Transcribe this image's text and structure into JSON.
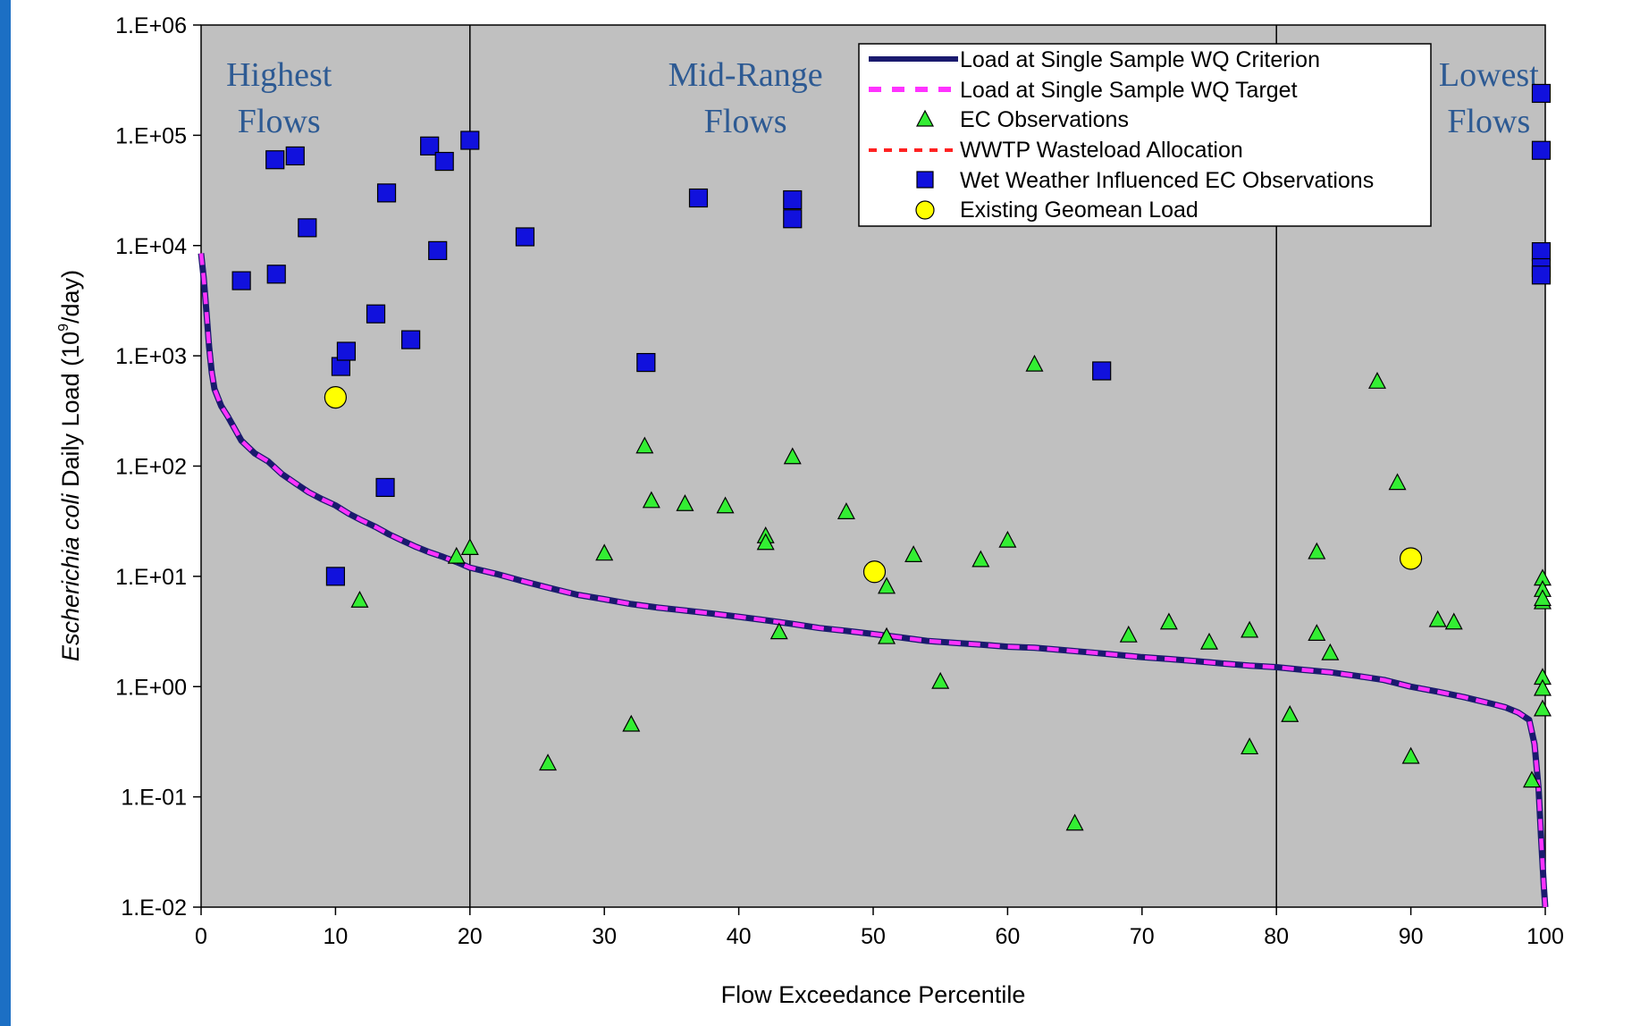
{
  "chart_data": {
    "type": "scatter",
    "xlabel": "Flow Exceedance Percentile",
    "ylabel": {
      "italic": "Escherichia coli",
      "rest": " Daily Load (10",
      "sup": "9",
      "unit_tail": "/day)"
    },
    "xlim": [
      0,
      100
    ],
    "ylim": [
      0.01,
      1000000
    ],
    "y_scale": "log",
    "x_ticks": [
      "0",
      "10",
      "20",
      "30",
      "40",
      "50",
      "60",
      "70",
      "80",
      "90",
      "100"
    ],
    "y_ticks": [
      "1.E-02",
      "1.E-01",
      "1.E+00",
      "1.E+01",
      "1.E+02",
      "1.E+03",
      "1.E+04",
      "1.E+05",
      "1.E+06"
    ],
    "plot_background": "#c0c0c0",
    "vertical_lines": [
      20,
      80
    ],
    "zone_labels": [
      {
        "lines": [
          "Highest",
          "Flows"
        ],
        "x": 5.8
      },
      {
        "lines": [
          "Mid-Range",
          "Flows"
        ],
        "x": 40.5
      },
      {
        "lines": [
          "Lowest",
          "Flows"
        ],
        "x": 95.8
      }
    ],
    "legend": {
      "position": "top-right",
      "entries": [
        "Load at Single Sample WQ Criterion",
        "Load at Single Sample WQ Target",
        "EC Observations",
        "WWTP Wasteload Allocation",
        "Wet Weather Influenced EC Observations",
        "Existing Geomean Load"
      ]
    },
    "series": [
      {
        "name": "Load at Single Sample WQ Criterion",
        "kind": "line",
        "color": "#1a1a6e",
        "points": [
          [
            0,
            8500
          ],
          [
            0.2,
            5000
          ],
          [
            0.4,
            2500
          ],
          [
            0.6,
            1200
          ],
          [
            0.8,
            700
          ],
          [
            1,
            500
          ],
          [
            1.5,
            350
          ],
          [
            2,
            280
          ],
          [
            3,
            170
          ],
          [
            4,
            130
          ],
          [
            5,
            110
          ],
          [
            6,
            85
          ],
          [
            7,
            70
          ],
          [
            8,
            58
          ],
          [
            9,
            50
          ],
          [
            10,
            44
          ],
          [
            11,
            37
          ],
          [
            12,
            32
          ],
          [
            13,
            28
          ],
          [
            14,
            24
          ],
          [
            15,
            21
          ],
          [
            16,
            18.5
          ],
          [
            17,
            16.5
          ],
          [
            18,
            15
          ],
          [
            19,
            13.5
          ],
          [
            20,
            12
          ],
          [
            22,
            10.5
          ],
          [
            24,
            9
          ],
          [
            26,
            7.8
          ],
          [
            28,
            6.8
          ],
          [
            30,
            6.2
          ],
          [
            32,
            5.6
          ],
          [
            34,
            5.2
          ],
          [
            36,
            4.9
          ],
          [
            38,
            4.6
          ],
          [
            40,
            4.3
          ],
          [
            42,
            4.0
          ],
          [
            44,
            3.7
          ],
          [
            46,
            3.4
          ],
          [
            48,
            3.2
          ],
          [
            50,
            3.0
          ],
          [
            52,
            2.8
          ],
          [
            54,
            2.6
          ],
          [
            56,
            2.5
          ],
          [
            58,
            2.4
          ],
          [
            60,
            2.3
          ],
          [
            62,
            2.25
          ],
          [
            64,
            2.15
          ],
          [
            66,
            2.05
          ],
          [
            68,
            1.95
          ],
          [
            70,
            1.85
          ],
          [
            72,
            1.78
          ],
          [
            74,
            1.7
          ],
          [
            76,
            1.62
          ],
          [
            78,
            1.55
          ],
          [
            80,
            1.5
          ],
          [
            82,
            1.42
          ],
          [
            84,
            1.35
          ],
          [
            86,
            1.25
          ],
          [
            88,
            1.15
          ],
          [
            90,
            1.0
          ],
          [
            92,
            0.9
          ],
          [
            94,
            0.8
          ],
          [
            96,
            0.7
          ],
          [
            97,
            0.65
          ],
          [
            98,
            0.58
          ],
          [
            98.8,
            0.5
          ],
          [
            99.2,
            0.3
          ],
          [
            99.5,
            0.12
          ],
          [
            99.7,
            0.04
          ],
          [
            99.9,
            0.015
          ],
          [
            100,
            0.01
          ]
        ]
      },
      {
        "name": "Load at Single Sample WQ Target",
        "kind": "dashed-line",
        "color": "#ff33ff",
        "points": [
          [
            0,
            8500
          ],
          [
            0.2,
            5000
          ],
          [
            0.4,
            2500
          ],
          [
            0.6,
            1200
          ],
          [
            0.8,
            700
          ],
          [
            1,
            500
          ],
          [
            1.5,
            350
          ],
          [
            2,
            280
          ],
          [
            3,
            170
          ],
          [
            4,
            130
          ],
          [
            5,
            110
          ],
          [
            6,
            85
          ],
          [
            7,
            70
          ],
          [
            8,
            58
          ],
          [
            9,
            50
          ],
          [
            10,
            44
          ],
          [
            11,
            37
          ],
          [
            12,
            32
          ],
          [
            13,
            28
          ],
          [
            14,
            24
          ],
          [
            15,
            21
          ],
          [
            16,
            18.5
          ],
          [
            17,
            16.5
          ],
          [
            18,
            15
          ],
          [
            19,
            13.5
          ],
          [
            20,
            12
          ],
          [
            22,
            10.5
          ],
          [
            24,
            9
          ],
          [
            26,
            7.8
          ],
          [
            28,
            6.8
          ],
          [
            30,
            6.2
          ],
          [
            32,
            5.6
          ],
          [
            34,
            5.2
          ],
          [
            36,
            4.9
          ],
          [
            38,
            4.6
          ],
          [
            40,
            4.3
          ],
          [
            42,
            4.0
          ],
          [
            44,
            3.7
          ],
          [
            46,
            3.4
          ],
          [
            48,
            3.2
          ],
          [
            50,
            3.0
          ],
          [
            52,
            2.8
          ],
          [
            54,
            2.6
          ],
          [
            56,
            2.5
          ],
          [
            58,
            2.4
          ],
          [
            60,
            2.3
          ],
          [
            62,
            2.25
          ],
          [
            64,
            2.15
          ],
          [
            66,
            2.05
          ],
          [
            68,
            1.95
          ],
          [
            70,
            1.85
          ],
          [
            72,
            1.78
          ],
          [
            74,
            1.7
          ],
          [
            76,
            1.62
          ],
          [
            78,
            1.55
          ],
          [
            80,
            1.5
          ],
          [
            82,
            1.42
          ],
          [
            84,
            1.35
          ],
          [
            86,
            1.25
          ],
          [
            88,
            1.15
          ],
          [
            90,
            1.0
          ],
          [
            92,
            0.9
          ],
          [
            94,
            0.8
          ],
          [
            96,
            0.7
          ],
          [
            97,
            0.65
          ],
          [
            98,
            0.58
          ],
          [
            98.8,
            0.5
          ],
          [
            99.2,
            0.3
          ],
          [
            99.5,
            0.12
          ],
          [
            99.7,
            0.04
          ],
          [
            99.9,
            0.015
          ],
          [
            100,
            0.01
          ]
        ]
      },
      {
        "name": "EC Observations",
        "kind": "triangle",
        "color": "#33ee33",
        "points": [
          [
            11.8,
            6
          ],
          [
            19,
            15
          ],
          [
            20,
            18
          ],
          [
            25.8,
            0.2
          ],
          [
            30,
            16
          ],
          [
            32,
            0.45
          ],
          [
            33,
            150
          ],
          [
            33.5,
            48
          ],
          [
            36,
            45
          ],
          [
            39,
            43
          ],
          [
            42,
            23
          ],
          [
            42,
            20
          ],
          [
            43,
            3.1
          ],
          [
            44,
            120
          ],
          [
            48,
            38
          ],
          [
            51,
            8
          ],
          [
            51,
            2.8
          ],
          [
            53,
            15.5
          ],
          [
            55,
            1.1
          ],
          [
            58,
            14
          ],
          [
            60,
            21
          ],
          [
            62,
            830
          ],
          [
            65,
            0.057
          ],
          [
            69,
            2.9
          ],
          [
            72,
            3.8
          ],
          [
            75,
            2.5
          ],
          [
            78,
            3.2
          ],
          [
            78,
            0.28
          ],
          [
            81,
            0.55
          ],
          [
            83,
            16.5
          ],
          [
            83,
            3.0
          ],
          [
            84,
            2.0
          ],
          [
            87.5,
            580
          ],
          [
            89,
            70
          ],
          [
            90,
            0.23
          ],
          [
            92,
            4.0
          ],
          [
            93.2,
            3.8
          ],
          [
            99,
            0.14
          ],
          [
            99.8,
            9.5
          ],
          [
            99.8,
            7.5
          ],
          [
            99.8,
            5.8
          ],
          [
            99.8,
            6.2
          ],
          [
            99.8,
            1.2
          ],
          [
            99.8,
            0.95
          ],
          [
            99.8,
            0.62
          ]
        ]
      },
      {
        "name": "Wet Weather Influenced EC Observations",
        "kind": "square",
        "color": "#1111dd",
        "points": [
          [
            3,
            4800
          ],
          [
            5.5,
            60000
          ],
          [
            5.6,
            5500
          ],
          [
            7,
            65000
          ],
          [
            7.9,
            14500
          ],
          [
            10,
            10
          ],
          [
            10.4,
            800
          ],
          [
            10.8,
            1100
          ],
          [
            13,
            2400
          ],
          [
            13.7,
            64
          ],
          [
            13.8,
            30000
          ],
          [
            15.6,
            1400
          ],
          [
            17,
            80000
          ],
          [
            17.6,
            9000
          ],
          [
            18.1,
            58000
          ],
          [
            20,
            90000
          ],
          [
            24.1,
            12000
          ],
          [
            33.1,
            870
          ],
          [
            37,
            27000
          ],
          [
            44,
            26000
          ],
          [
            44,
            17500
          ],
          [
            67,
            730
          ],
          [
            99.7,
            240000
          ],
          [
            99.7,
            73000
          ],
          [
            99.7,
            8800
          ],
          [
            99.7,
            6300
          ],
          [
            99.7,
            5400
          ]
        ]
      },
      {
        "name": "Existing Geomean Load",
        "kind": "circle",
        "color": "#ffff00",
        "points": [
          [
            10,
            420
          ],
          [
            50.1,
            11
          ],
          [
            90,
            14.5
          ]
        ]
      }
    ]
  }
}
